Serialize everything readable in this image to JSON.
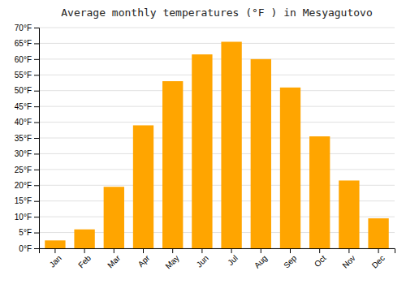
{
  "chart_data": {
    "type": "bar",
    "title": "Average monthly temperatures (°F ) in Mesyagutovo",
    "categories": [
      "Jan",
      "Feb",
      "Mar",
      "Apr",
      "May",
      "Jun",
      "Jul",
      "Aug",
      "Sep",
      "Oct",
      "Nov",
      "Dec"
    ],
    "values": [
      2.5,
      6.0,
      19.5,
      39.0,
      53.0,
      61.5,
      65.5,
      60.0,
      51.0,
      35.5,
      21.5,
      9.5
    ],
    "color": "#FFA500",
    "ylim": [
      0,
      70
    ],
    "yticks": [
      {
        "value": 0,
        "label": "0°F"
      },
      {
        "value": 5,
        "label": "5°F"
      },
      {
        "value": 10,
        "label": "10°F"
      },
      {
        "value": 15,
        "label": "15°F"
      },
      {
        "value": 20,
        "label": "20°F"
      },
      {
        "value": 25,
        "label": "25°F"
      },
      {
        "value": 30,
        "label": "30°F"
      },
      {
        "value": 35,
        "label": "35°F"
      },
      {
        "value": 40,
        "label": "40°F"
      },
      {
        "value": 45,
        "label": "45°F"
      },
      {
        "value": 50,
        "label": "50°F"
      },
      {
        "value": 55,
        "label": "55°F"
      },
      {
        "value": 60,
        "label": "60°F"
      },
      {
        "value": 65,
        "label": "65°F"
      },
      {
        "value": 70,
        "label": "70°F"
      }
    ],
    "grid": true
  }
}
